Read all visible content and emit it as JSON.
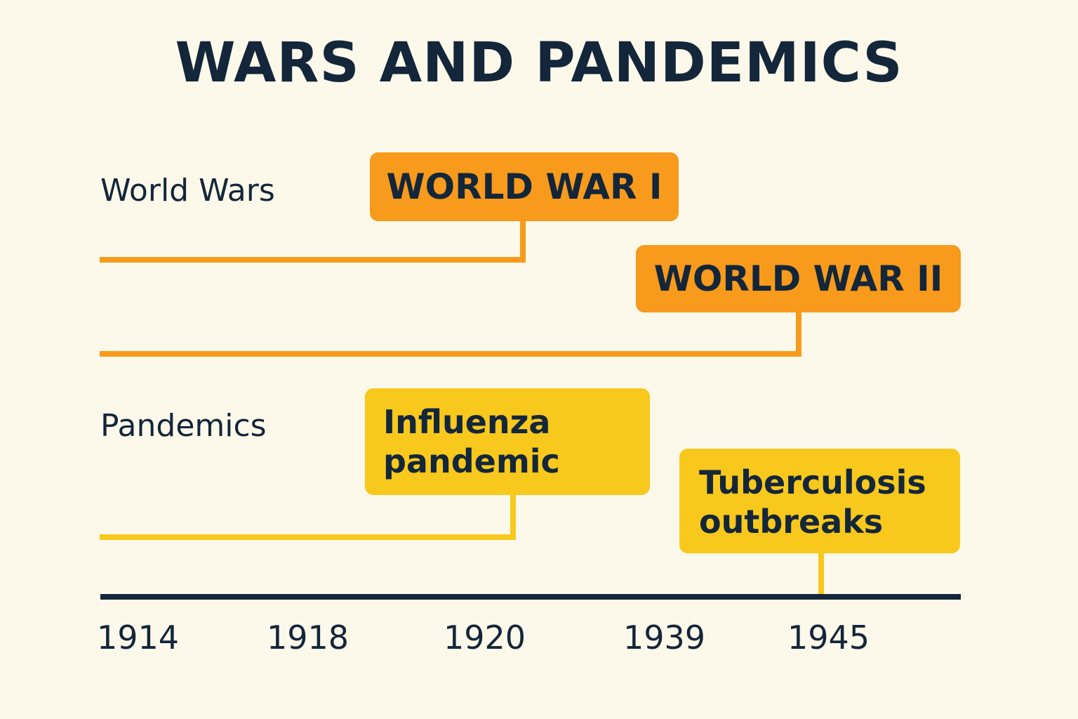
{
  "title": "WARS AND PANDEMICS",
  "rows": {
    "wars_label": "World Wars",
    "pandemics_label": "Pandemics"
  },
  "events": {
    "ww1": "WORLD WAR I",
    "ww2": "WORLD WAR II",
    "influenza": [
      "Influenza",
      "pandemic"
    ],
    "tuberculosis": [
      "Tuberculosis",
      "outbreaks"
    ]
  },
  "axis": {
    "ticks": [
      "1914",
      "1918",
      "1920",
      "1939",
      "1945"
    ]
  },
  "colors": {
    "background": "#fdf9ea",
    "war": "#f89a1c",
    "pandemic": "#f8c81c",
    "text": "#13263a"
  }
}
